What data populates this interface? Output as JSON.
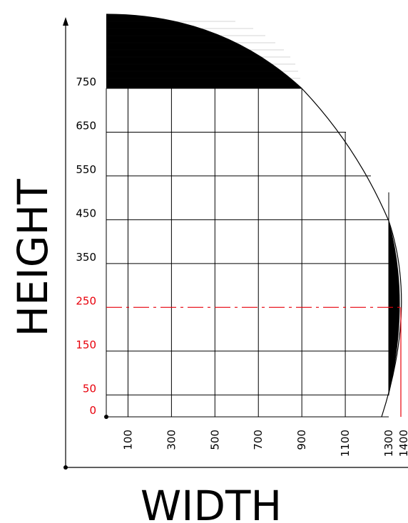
{
  "chart_data": {
    "type": "diagram",
    "axis_titles": {
      "x": "WIDTH",
      "y": "HEIGHT"
    },
    "x_ticks": [
      {
        "label": "100",
        "value": 100,
        "color": "#000000"
      },
      {
        "label": "300",
        "value": 300,
        "color": "#000000"
      },
      {
        "label": "500",
        "value": 500,
        "color": "#000000"
      },
      {
        "label": "700",
        "value": 700,
        "color": "#000000"
      },
      {
        "label": "900",
        "value": 900,
        "color": "#000000"
      },
      {
        "label": "1100",
        "value": 1100,
        "color": "#000000"
      },
      {
        "label": "1300",
        "value": 1300,
        "color": "#000000"
      },
      {
        "label": "1400",
        "value": 1400,
        "color": "#000000"
      }
    ],
    "y_ticks": [
      {
        "label": "0",
        "value": 0,
        "color": "#e8000b"
      },
      {
        "label": "50",
        "value": 50,
        "color": "#e8000b"
      },
      {
        "label": "150",
        "value": 150,
        "color": "#e8000b"
      },
      {
        "label": "250",
        "value": 250,
        "color": "#e8000b"
      },
      {
        "label": "350",
        "value": 350,
        "color": "#000000"
      },
      {
        "label": "450",
        "value": 450,
        "color": "#000000"
      },
      {
        "label": "550",
        "value": 550,
        "color": "#000000"
      },
      {
        "label": "650",
        "value": 650,
        "color": "#000000"
      },
      {
        "label": "750",
        "value": 750,
        "color": "#000000"
      }
    ],
    "reference_line": {
      "y": 250,
      "x_end": 1400,
      "style": "dash-dot",
      "color": "#e8000b"
    },
    "boundary": "quarter-ellipse",
    "colors": {
      "grid": "#000000",
      "accent": "#e8000b",
      "fill": "#000000"
    }
  }
}
